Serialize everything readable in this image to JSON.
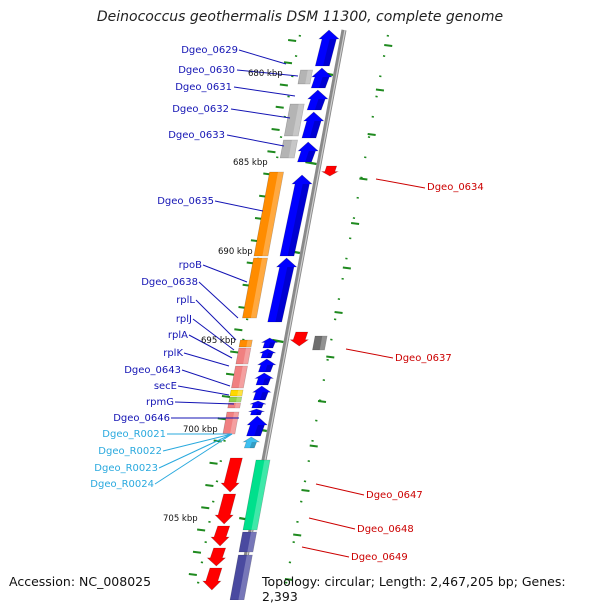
{
  "title": "Deinococcus geothermalis DSM 11300, complete genome",
  "accession": "Accession: NC_008025",
  "topology": "Topology: circular; Length: 2,467,205 bp; Genes: 2,393",
  "colors": {
    "label_blue": "#1414b4",
    "label_red": "#cc0000",
    "label_cyan": "#29a9de",
    "tick_green": "#1f8a1f",
    "backbone": "#8c8c8c",
    "gene_blue": "#0000ff",
    "gene_orange": "#ff8c00",
    "gene_grey": "#b4b4b4",
    "gene_salmon": "#f08080",
    "gene_red": "#ff0000",
    "gene_green": "#00e08c",
    "gene_navy": "#4a4aa0",
    "gene_yellow": "#ffd800",
    "trna_cyan": "#40c0f0"
  },
  "scale_labels": [
    "680 kbp",
    "685 kbp",
    "690 kbp",
    "695 kbp",
    "700 kbp",
    "705 kbp"
  ],
  "labels_left_blue": [
    "Dgeo_0629",
    "Dgeo_0630",
    "Dgeo_0631",
    "Dgeo_0632",
    "Dgeo_0633",
    "Dgeo_0635",
    "rpoB",
    "Dgeo_0638",
    "rplL",
    "rplJ",
    "rplA",
    "rplK",
    "Dgeo_0643",
    "secE",
    "rpmG",
    "Dgeo_0646"
  ],
  "labels_left_cyan": [
    "Dgeo_R0021",
    "Dgeo_R0022",
    "Dgeo_R0023",
    "Dgeo_R0024"
  ],
  "labels_right_red": [
    "Dgeo_0634",
    "Dgeo_0637",
    "Dgeo_0647",
    "Dgeo_0648",
    "Dgeo_0649"
  ]
}
